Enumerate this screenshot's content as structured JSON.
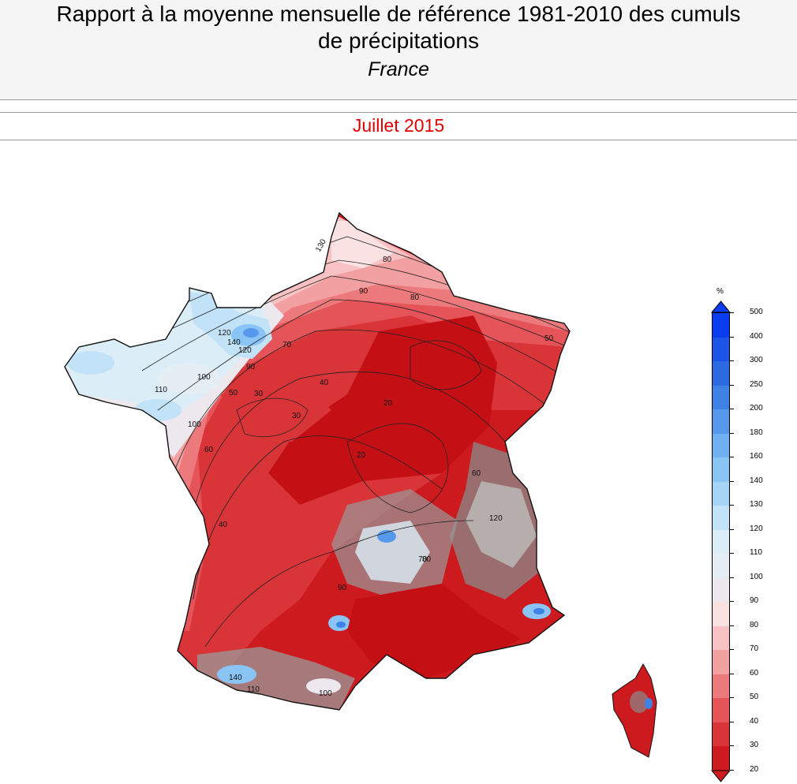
{
  "header": {
    "title_line1": "Rapport à la moyenne mensuelle de référence 1981-2010 des cumuls",
    "title_line2": "de précipitations",
    "region": "France"
  },
  "period": "Juillet 2015",
  "legend": {
    "unit": "%",
    "levels": [
      "500",
      "400",
      "300",
      "250",
      "200",
      "180",
      "160",
      "140",
      "130",
      "120",
      "110",
      "100",
      "90",
      "80",
      "70",
      "60",
      "50",
      "40",
      "30",
      "20"
    ],
    "colors": [
      "#0a3cf0",
      "#1c54e8",
      "#2c6ae4",
      "#3e82e6",
      "#5699ec",
      "#6fb0f0",
      "#8ac4f4",
      "#a6d4f6",
      "#c2e2f8",
      "#dbeef8",
      "#e6eef5",
      "#ede8ee",
      "#fbe2e2",
      "#f8c2c4",
      "#f2a0a2",
      "#ec7a7c",
      "#e45458",
      "#d93438",
      "#cc1a1e"
    ]
  },
  "map": {
    "contour_labels": [
      "130",
      "120",
      "140",
      "100",
      "110",
      "120",
      "80",
      "90",
      "100",
      "80",
      "90",
      "70",
      "60",
      "50",
      "40",
      "30",
      "20",
      "20",
      "30",
      "40",
      "50",
      "60",
      "70",
      "80",
      "90",
      "100",
      "110",
      "120",
      "140"
    ]
  }
}
